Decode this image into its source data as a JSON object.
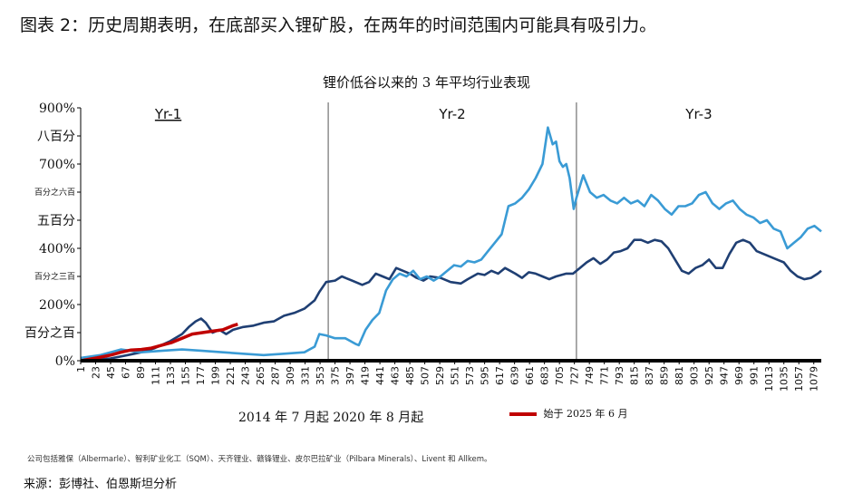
{
  "page_title": "图表 2：历史周期表明，在底部买入锂矿股，在两年的时间范围内可能具有吸引力。",
  "footnote": "公司包括雅保（Albermarle）、智利矿业化工（SQM）、天齐锂业、赣锋锂业、皮尔巴拉矿业（Pilbara Minerals）、Livent 和 Allkem。",
  "source": "来源：彭博社、伯恩斯坦分析",
  "chart_data": {
    "type": "line",
    "title": "锂价低谷以来的 3 年平均行业表现",
    "xlabel": "2014 年 7 月起 2020 年 8 月起",
    "ylabel": "",
    "ylim": [
      0,
      900
    ],
    "xlim": [
      1,
      1090
    ],
    "y_tick_labels": [
      {
        "value": 900,
        "label": "900%"
      },
      {
        "value": 800,
        "label": "八百分"
      },
      {
        "value": 700,
        "label": "700%"
      },
      {
        "value": 600,
        "label": "百分之六百"
      },
      {
        "value": 500,
        "label": "五百分"
      },
      {
        "value": 400,
        "label": "400%"
      },
      {
        "value": 300,
        "label": "百分之三百"
      },
      {
        "value": 200,
        "label": "200%"
      },
      {
        "value": 100,
        "label": "百分之百"
      },
      {
        "value": 0,
        "label": "0%"
      }
    ],
    "x_ticks": [
      1,
      23,
      45,
      67,
      89,
      111,
      133,
      155,
      177,
      199,
      221,
      243,
      265,
      287,
      309,
      331,
      353,
      375,
      397,
      419,
      441,
      463,
      485,
      507,
      529,
      551,
      573,
      595,
      617,
      639,
      661,
      683,
      705,
      727,
      749,
      771,
      793,
      815,
      837,
      859,
      881,
      903,
      925,
      947,
      969,
      991,
      1013,
      1035,
      1057,
      1079
    ],
    "period_dividers": [
      {
        "x": 1,
        "label": "Yr-1"
      },
      {
        "x": 365,
        "label": "Yr-2"
      },
      {
        "x": 730,
        "label": "Yr-3"
      }
    ],
    "legend": [
      {
        "name": "始于 2025 年 6 月",
        "color": "#c00000"
      }
    ],
    "series": [
      {
        "name": "2014 年 7 月起",
        "color": "#1f3f73",
        "points": [
          [
            1,
            0
          ],
          [
            20,
            3
          ],
          [
            45,
            8
          ],
          [
            70,
            20
          ],
          [
            90,
            30
          ],
          [
            110,
            45
          ],
          [
            133,
            70
          ],
          [
            150,
            95
          ],
          [
            160,
            120
          ],
          [
            170,
            140
          ],
          [
            178,
            150
          ],
          [
            185,
            135
          ],
          [
            195,
            100
          ],
          [
            205,
            110
          ],
          [
            215,
            95
          ],
          [
            225,
            110
          ],
          [
            240,
            120
          ],
          [
            255,
            125
          ],
          [
            270,
            135
          ],
          [
            285,
            140
          ],
          [
            300,
            160
          ],
          [
            315,
            170
          ],
          [
            330,
            185
          ],
          [
            345,
            215
          ],
          [
            352,
            245
          ],
          [
            362,
            280
          ],
          [
            375,
            285
          ],
          [
            385,
            300
          ],
          [
            400,
            285
          ],
          [
            415,
            270
          ],
          [
            425,
            280
          ],
          [
            435,
            310
          ],
          [
            445,
            300
          ],
          [
            455,
            290
          ],
          [
            465,
            330
          ],
          [
            475,
            320
          ],
          [
            485,
            310
          ],
          [
            495,
            295
          ],
          [
            505,
            285
          ],
          [
            515,
            300
          ],
          [
            530,
            295
          ],
          [
            545,
            280
          ],
          [
            560,
            275
          ],
          [
            570,
            290
          ],
          [
            585,
            310
          ],
          [
            595,
            305
          ],
          [
            605,
            320
          ],
          [
            615,
            310
          ],
          [
            625,
            330
          ],
          [
            640,
            310
          ],
          [
            650,
            295
          ],
          [
            660,
            315
          ],
          [
            670,
            310
          ],
          [
            680,
            300
          ],
          [
            690,
            290
          ],
          [
            700,
            300
          ],
          [
            715,
            310
          ],
          [
            725,
            310
          ],
          [
            735,
            330
          ],
          [
            745,
            350
          ],
          [
            755,
            365
          ],
          [
            765,
            345
          ],
          [
            775,
            360
          ],
          [
            785,
            385
          ],
          [
            795,
            390
          ],
          [
            805,
            400
          ],
          [
            815,
            430
          ],
          [
            825,
            430
          ],
          [
            835,
            420
          ],
          [
            845,
            430
          ],
          [
            855,
            425
          ],
          [
            865,
            400
          ],
          [
            875,
            360
          ],
          [
            885,
            320
          ],
          [
            895,
            310
          ],
          [
            905,
            330
          ],
          [
            915,
            340
          ],
          [
            925,
            360
          ],
          [
            935,
            330
          ],
          [
            945,
            330
          ],
          [
            955,
            380
          ],
          [
            965,
            420
          ],
          [
            975,
            430
          ],
          [
            985,
            420
          ],
          [
            995,
            390
          ],
          [
            1005,
            380
          ],
          [
            1015,
            370
          ],
          [
            1025,
            360
          ],
          [
            1035,
            350
          ],
          [
            1045,
            320
          ],
          [
            1055,
            300
          ],
          [
            1065,
            290
          ],
          [
            1075,
            295
          ],
          [
            1085,
            310
          ],
          [
            1090,
            320
          ]
        ]
      },
      {
        "name": "2020 年 8 月起",
        "color": "#3a9bd5",
        "points": [
          [
            1,
            10
          ],
          [
            30,
            20
          ],
          [
            60,
            40
          ],
          [
            90,
            30
          ],
          [
            120,
            35
          ],
          [
            150,
            40
          ],
          [
            180,
            35
          ],
          [
            210,
            30
          ],
          [
            240,
            25
          ],
          [
            270,
            20
          ],
          [
            300,
            25
          ],
          [
            330,
            30
          ],
          [
            345,
            50
          ],
          [
            352,
            95
          ],
          [
            362,
            90
          ],
          [
            375,
            80
          ],
          [
            390,
            80
          ],
          [
            405,
            60
          ],
          [
            410,
            55
          ],
          [
            420,
            110
          ],
          [
            430,
            145
          ],
          [
            440,
            170
          ],
          [
            450,
            250
          ],
          [
            460,
            290
          ],
          [
            470,
            310
          ],
          [
            480,
            300
          ],
          [
            490,
            320
          ],
          [
            500,
            290
          ],
          [
            510,
            300
          ],
          [
            520,
            285
          ],
          [
            530,
            300
          ],
          [
            540,
            320
          ],
          [
            550,
            340
          ],
          [
            560,
            335
          ],
          [
            570,
            355
          ],
          [
            580,
            350
          ],
          [
            590,
            360
          ],
          [
            600,
            390
          ],
          [
            610,
            420
          ],
          [
            620,
            450
          ],
          [
            630,
            550
          ],
          [
            640,
            560
          ],
          [
            650,
            580
          ],
          [
            660,
            610
          ],
          [
            670,
            650
          ],
          [
            680,
            700
          ],
          [
            688,
            830
          ],
          [
            695,
            770
          ],
          [
            700,
            780
          ],
          [
            705,
            710
          ],
          [
            710,
            690
          ],
          [
            715,
            700
          ],
          [
            720,
            650
          ],
          [
            726,
            540
          ],
          [
            730,
            580
          ],
          [
            740,
            660
          ],
          [
            750,
            600
          ],
          [
            760,
            580
          ],
          [
            770,
            590
          ],
          [
            780,
            570
          ],
          [
            790,
            560
          ],
          [
            800,
            580
          ],
          [
            810,
            560
          ],
          [
            820,
            570
          ],
          [
            830,
            550
          ],
          [
            840,
            590
          ],
          [
            850,
            570
          ],
          [
            860,
            540
          ],
          [
            870,
            520
          ],
          [
            880,
            550
          ],
          [
            890,
            550
          ],
          [
            900,
            560
          ],
          [
            910,
            590
          ],
          [
            920,
            600
          ],
          [
            930,
            560
          ],
          [
            940,
            540
          ],
          [
            950,
            560
          ],
          [
            960,
            570
          ],
          [
            970,
            540
          ],
          [
            980,
            520
          ],
          [
            990,
            510
          ],
          [
            1000,
            490
          ],
          [
            1010,
            500
          ],
          [
            1020,
            470
          ],
          [
            1030,
            460
          ],
          [
            1040,
            400
          ],
          [
            1050,
            420
          ],
          [
            1060,
            440
          ],
          [
            1070,
            470
          ],
          [
            1080,
            480
          ],
          [
            1090,
            460
          ]
        ]
      },
      {
        "name": "始于 2025 年 6 月",
        "color": "#c00000",
        "points": [
          [
            1,
            0
          ],
          [
            25,
            10
          ],
          [
            45,
            20
          ],
          [
            60,
            30
          ],
          [
            75,
            38
          ],
          [
            90,
            40
          ],
          [
            105,
            45
          ],
          [
            120,
            55
          ],
          [
            135,
            65
          ],
          [
            150,
            80
          ],
          [
            165,
            95
          ],
          [
            180,
            100
          ],
          [
            195,
            105
          ],
          [
            210,
            110
          ],
          [
            225,
            125
          ],
          [
            232,
            130
          ]
        ]
      }
    ]
  }
}
